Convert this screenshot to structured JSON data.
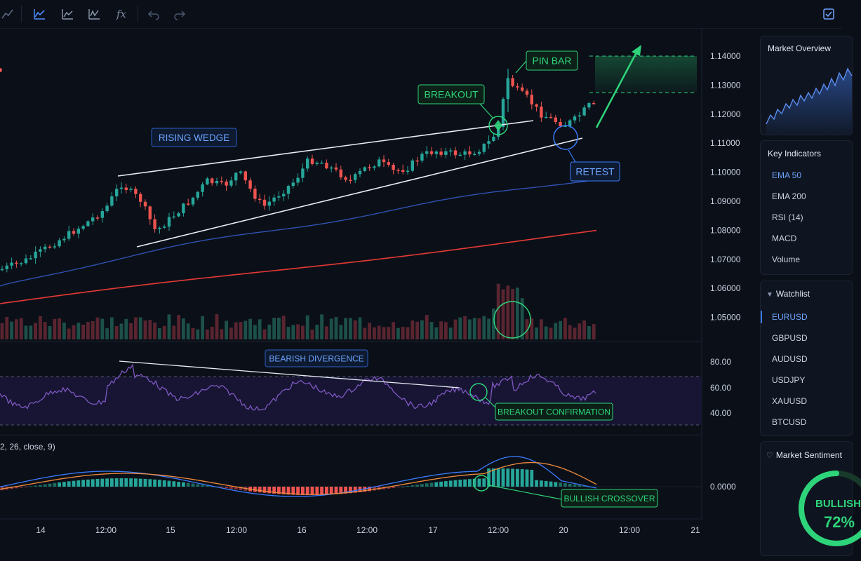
{
  "toolbar": {
    "icons": [
      "chart-type-icon",
      "line-chart-icon",
      "bar-chart-icon",
      "candles-chart-icon",
      "function-icon",
      "undo-icon",
      "redo-icon",
      "checkbox-icon"
    ],
    "fx_label": "fx"
  },
  "annotations": {
    "rising_wedge": "RISING WEDGE",
    "breakout": "BREAKOUT",
    "pin_bar": "PIN BAR",
    "retest": "RETEST",
    "bearish_divergence": "BEARISH DIVERGENCE",
    "breakout_confirmation": "BREAKOUT CONFIRMATION",
    "bullish_crossover": "BULLISH CROSSOVER"
  },
  "price_axis": [
    "1.14000",
    "1.13000",
    "1.12000",
    "1.11000",
    "1.10000",
    "1.09000",
    "1.08000",
    "1.07000",
    "1.06000",
    "1.05000"
  ],
  "rsi_axis": [
    "80.00",
    "60.00",
    "40.00"
  ],
  "macd_axis": [
    "0.0000"
  ],
  "macd_label": "2, 26, close, 9)",
  "time_axis": [
    "14",
    "12:00",
    "15",
    "12:00",
    "16",
    "12:00",
    "17",
    "12:00",
    "20",
    "12:00",
    "21"
  ],
  "sidebar": {
    "market_overview": {
      "title": "Market Overview"
    },
    "key_indicators": {
      "title": "Key Indicators",
      "items": [
        "EMA 50",
        "EMA 200",
        "RSI (14)",
        "MACD",
        "Volume"
      ],
      "active_index": 0
    },
    "watchlist": {
      "title": "Watchlist",
      "items": [
        "EURUSD",
        "GBPUSD",
        "AUDUSD",
        "USDJPY",
        "XAUUSD",
        "BTCUSD"
      ],
      "active_index": 0
    },
    "market_sentiment": {
      "title": "Market Sentiment",
      "label": "BULLISH",
      "value": "72%"
    }
  },
  "colors": {
    "background": "#0b1018",
    "bull": "#26a69a",
    "bear": "#ef5350",
    "accent_green": "#2ed47a",
    "accent_blue": "#3b7bff",
    "ema200": "#e53935",
    "ema50": "#3050b0",
    "rsi": "#7e57c2"
  },
  "chart_data": {
    "type": "candlestick",
    "price_range": [
      1.045,
      1.145
    ],
    "rsi_range": [
      30,
      85
    ],
    "x_labels": [
      "14",
      "12:00",
      "15",
      "12:00",
      "16",
      "12:00",
      "17",
      "12:00",
      "20",
      "12:00",
      "21"
    ]
  }
}
